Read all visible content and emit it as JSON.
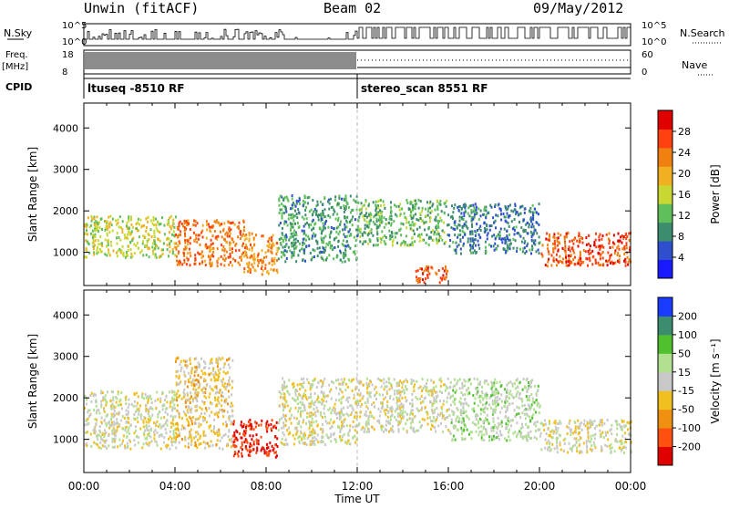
{
  "header": {
    "station": "Unwin (fitACF)",
    "beam": "Beam 02",
    "date": "09/May/2012"
  },
  "strip_labels": {
    "nsky": "N.Sky",
    "nsearch": "N.Search",
    "freq": "Freq.",
    "freq_unit": "[MHz]",
    "nave": "Nave",
    "cpid": "CPID",
    "nsky_ticks": [
      "10^5",
      "10^0"
    ],
    "nsearch_ticks": [
      "10^5",
      "10^0"
    ],
    "freq_ticks": [
      "18",
      "8"
    ],
    "nave_ticks": [
      "60",
      "0"
    ]
  },
  "cpid_segments": [
    {
      "start_hour": 0,
      "end_hour": 12,
      "label": "ltuseq -8510 RF"
    },
    {
      "start_hour": 12,
      "end_hour": 24,
      "label": "stereo_scan 8551 RF"
    }
  ],
  "colors": {
    "power_scale": [
      "#1a1aff",
      "#2f4fcf",
      "#3c8c6e",
      "#5fbf5a",
      "#c8d832",
      "#f0b020",
      "#f08010",
      "#ff4010",
      "#e00000"
    ],
    "velocity_scale": [
      "#e00000",
      "#ff5010",
      "#f09010",
      "#f0c020",
      "#c8c8c8",
      "#b0e090",
      "#50c030",
      "#3c8c6e",
      "#1a3cff"
    ]
  },
  "chart_data": [
    {
      "type": "heatmap",
      "name_field": "power",
      "xlabel": "",
      "ylabel": "Slant Range [km]",
      "xlim": [
        0,
        24
      ],
      "ylim": [
        200,
        4600
      ],
      "y_ticks": [
        "4000",
        "3000",
        "2000",
        "1000"
      ],
      "colorbar_label": "Power [dB]",
      "colorbar_ticks": [
        "28",
        "24",
        "20",
        "16",
        "12",
        "8",
        "4"
      ],
      "colorbar_range": [
        0,
        32
      ],
      "regions": [
        {
          "t0": 0.0,
          "t1": 4.0,
          "r0": 900,
          "r1": 1900,
          "value": 16
        },
        {
          "t0": 4.0,
          "t1": 7.0,
          "r0": 700,
          "r1": 1800,
          "value": 24
        },
        {
          "t0": 7.0,
          "t1": 8.5,
          "r0": 500,
          "r1": 1500,
          "value": 22
        },
        {
          "t0": 8.5,
          "t1": 12.0,
          "r0": 800,
          "r1": 2400,
          "value": 10
        },
        {
          "t0": 12.0,
          "t1": 16.0,
          "r0": 1200,
          "r1": 2300,
          "value": 12
        },
        {
          "t0": 14.5,
          "t1": 16.0,
          "r0": 300,
          "r1": 700,
          "value": 26
        },
        {
          "t0": 16.0,
          "t1": 20.0,
          "r0": 1000,
          "r1": 2200,
          "value": 8
        },
        {
          "t0": 20.0,
          "t1": 24.0,
          "r0": 700,
          "r1": 1500,
          "value": 26
        }
      ]
    },
    {
      "type": "heatmap",
      "name_field": "velocity",
      "xlabel": "Time UT",
      "ylabel": "Slant Range [km]",
      "xlim": [
        0,
        24
      ],
      "ylim": [
        200,
        4600
      ],
      "x_ticks": [
        "00:00",
        "04:00",
        "08:00",
        "12:00",
        "16:00",
        "20:00",
        "00:00"
      ],
      "y_ticks": [
        "4000",
        "3000",
        "2000",
        "1000"
      ],
      "colorbar_label": "Velocity [m s⁻¹]",
      "colorbar_ticks": [
        "200",
        "100",
        "50",
        "15",
        "-15",
        "-50",
        "-100",
        "-200"
      ],
      "colorbar_range": [
        -250,
        250
      ],
      "regions": [
        {
          "t0": 0.0,
          "t1": 4.0,
          "r0": 800,
          "r1": 2200,
          "value": 0
        },
        {
          "t0": 4.0,
          "t1": 6.5,
          "r0": 800,
          "r1": 3000,
          "value": -40
        },
        {
          "t0": 6.5,
          "t1": 8.5,
          "r0": 600,
          "r1": 1500,
          "value": -200
        },
        {
          "t0": 8.5,
          "t1": 12.0,
          "r0": 900,
          "r1": 2500,
          "value": 0
        },
        {
          "t0": 12.0,
          "t1": 16.0,
          "r0": 1200,
          "r1": 2500,
          "value": 0
        },
        {
          "t0": 16.0,
          "t1": 20.0,
          "r0": 1000,
          "r1": 2500,
          "value": 40
        },
        {
          "t0": 20.0,
          "t1": 24.0,
          "r0": 700,
          "r1": 1500,
          "value": 0
        }
      ]
    }
  ]
}
